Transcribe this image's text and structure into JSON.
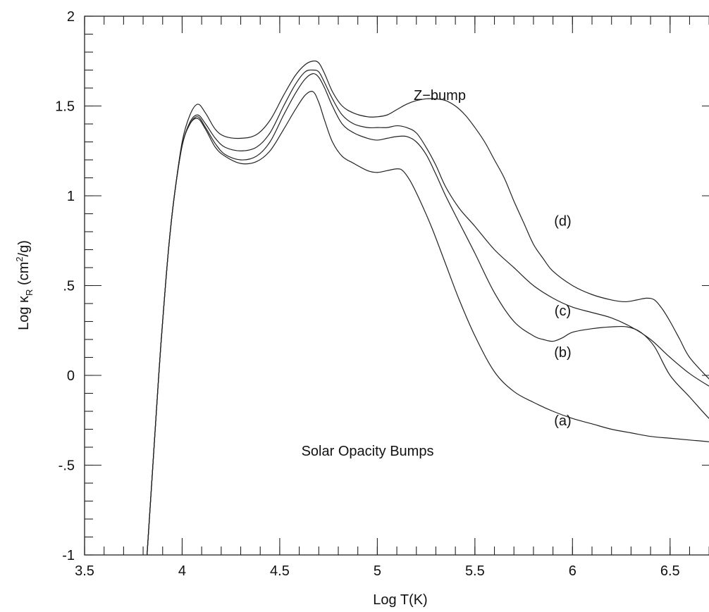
{
  "chart_data": {
    "type": "line",
    "xlabel": "Log T(K)",
    "ylabel_main": "Log κ",
    "ylabel_sub": "R",
    "ylabel_unit_pre": " (cm",
    "ylabel_unit_sup": "2",
    "ylabel_unit_post": "/g)",
    "xlim": [
      3.5,
      6.75
    ],
    "ylim": [
      -1,
      2
    ],
    "x_ticks": [
      {
        "value": 3.5,
        "label": "3.5"
      },
      {
        "value": 4,
        "label": "4"
      },
      {
        "value": 4.5,
        "label": "4.5"
      },
      {
        "value": 5,
        "label": "5"
      },
      {
        "value": 5.5,
        "label": "5.5"
      },
      {
        "value": 6,
        "label": "6"
      },
      {
        "value": 6.5,
        "label": "6.5"
      }
    ],
    "y_ticks": [
      {
        "value": 2,
        "label": "2"
      },
      {
        "value": 1.5,
        "label": "1.5"
      },
      {
        "value": 1,
        "label": "1"
      },
      {
        "value": 0.5,
        "label": ".5"
      },
      {
        "value": 0,
        "label": "0"
      },
      {
        "value": -0.5,
        "label": "-.5"
      },
      {
        "value": -1,
        "label": "-1"
      }
    ],
    "x_minor_step": 0.1,
    "y_minor_step": 0.1,
    "grid": false,
    "annotations": [
      {
        "text": "Z−bump",
        "x": 5.32,
        "y": 1.56
      },
      {
        "text": "Solar Opacity Bumps",
        "x": 4.95,
        "y": -0.42
      },
      {
        "text": "(d)",
        "x": 5.95,
        "y": 0.86
      },
      {
        "text": "(c)",
        "x": 5.95,
        "y": 0.36
      },
      {
        "text": "(b)",
        "x": 5.95,
        "y": 0.13
      },
      {
        "text": "(a)",
        "x": 5.95,
        "y": -0.25
      }
    ],
    "series": [
      {
        "name": "(a)",
        "x": [
          3.82,
          3.85,
          3.88,
          3.9,
          3.93,
          3.96,
          4.0,
          4.04,
          4.08,
          4.12,
          4.17,
          4.22,
          4.3,
          4.38,
          4.45,
          4.52,
          4.58,
          4.63,
          4.67,
          4.7,
          4.73,
          4.77,
          4.82,
          4.88,
          4.95,
          5.0,
          5.05,
          5.1,
          5.13,
          5.17,
          5.22,
          5.28,
          5.35,
          5.42,
          5.5,
          5.6,
          5.7,
          5.8,
          5.9,
          6.0,
          6.1,
          6.2,
          6.3,
          6.4,
          6.5,
          6.6,
          6.7,
          6.75
        ],
        "y": [
          -1.0,
          -0.5,
          0.0,
          0.3,
          0.7,
          1.0,
          1.28,
          1.4,
          1.43,
          1.37,
          1.27,
          1.22,
          1.18,
          1.19,
          1.25,
          1.37,
          1.48,
          1.56,
          1.58,
          1.52,
          1.42,
          1.3,
          1.22,
          1.18,
          1.14,
          1.13,
          1.14,
          1.15,
          1.14,
          1.08,
          0.97,
          0.82,
          0.62,
          0.42,
          0.22,
          0.02,
          -0.09,
          -0.15,
          -0.2,
          -0.24,
          -0.27,
          -0.3,
          -0.32,
          -0.34,
          -0.35,
          -0.36,
          -0.37,
          -0.38
        ]
      },
      {
        "name": "(b)",
        "x": [
          3.82,
          3.85,
          3.88,
          3.9,
          3.93,
          3.96,
          4.0,
          4.04,
          4.08,
          4.12,
          4.17,
          4.22,
          4.3,
          4.38,
          4.45,
          4.52,
          4.58,
          4.63,
          4.67,
          4.7,
          4.73,
          4.77,
          4.82,
          4.88,
          4.95,
          5.0,
          5.05,
          5.1,
          5.15,
          5.2,
          5.25,
          5.3,
          5.35,
          5.42,
          5.5,
          5.6,
          5.7,
          5.8,
          5.85,
          5.9,
          5.95,
          6.0,
          6.1,
          6.2,
          6.28,
          6.35,
          6.42,
          6.5,
          6.6,
          6.7,
          6.75
        ],
        "y": [
          -1.0,
          -0.5,
          0.0,
          0.3,
          0.7,
          1.0,
          1.28,
          1.4,
          1.44,
          1.38,
          1.29,
          1.23,
          1.2,
          1.22,
          1.3,
          1.45,
          1.57,
          1.65,
          1.68,
          1.66,
          1.6,
          1.5,
          1.4,
          1.35,
          1.32,
          1.31,
          1.32,
          1.33,
          1.33,
          1.3,
          1.23,
          1.12,
          1.0,
          0.85,
          0.68,
          0.46,
          0.3,
          0.22,
          0.2,
          0.19,
          0.21,
          0.24,
          0.26,
          0.27,
          0.27,
          0.24,
          0.16,
          0.0,
          -0.12,
          -0.24,
          -0.28
        ]
      },
      {
        "name": "(c)",
        "x": [
          3.82,
          3.85,
          3.88,
          3.9,
          3.93,
          3.96,
          4.0,
          4.04,
          4.08,
          4.12,
          4.17,
          4.22,
          4.3,
          4.38,
          4.45,
          4.52,
          4.58,
          4.63,
          4.67,
          4.7,
          4.73,
          4.77,
          4.82,
          4.88,
          4.95,
          5.0,
          5.05,
          5.1,
          5.15,
          5.2,
          5.25,
          5.3,
          5.35,
          5.42,
          5.5,
          5.6,
          5.7,
          5.8,
          5.9,
          6.0,
          6.1,
          6.2,
          6.3,
          6.4,
          6.5,
          6.6,
          6.7,
          6.75
        ],
        "y": [
          -1.0,
          -0.5,
          0.0,
          0.3,
          0.7,
          1.0,
          1.28,
          1.41,
          1.45,
          1.4,
          1.32,
          1.27,
          1.25,
          1.27,
          1.35,
          1.5,
          1.62,
          1.69,
          1.7,
          1.69,
          1.63,
          1.54,
          1.45,
          1.4,
          1.38,
          1.38,
          1.38,
          1.39,
          1.38,
          1.35,
          1.27,
          1.17,
          1.05,
          0.93,
          0.83,
          0.7,
          0.6,
          0.5,
          0.43,
          0.38,
          0.35,
          0.32,
          0.27,
          0.2,
          0.1,
          0.01,
          -0.06,
          -0.09
        ]
      },
      {
        "name": "(d)",
        "x": [
          3.82,
          3.85,
          3.88,
          3.9,
          3.93,
          3.96,
          4.0,
          4.04,
          4.08,
          4.12,
          4.17,
          4.22,
          4.3,
          4.38,
          4.45,
          4.52,
          4.58,
          4.63,
          4.67,
          4.7,
          4.73,
          4.77,
          4.82,
          4.88,
          4.95,
          5.0,
          5.05,
          5.1,
          5.15,
          5.2,
          5.25,
          5.3,
          5.35,
          5.4,
          5.45,
          5.5,
          5.55,
          5.6,
          5.65,
          5.7,
          5.75,
          5.8,
          5.85,
          5.9,
          6.0,
          6.1,
          6.2,
          6.27,
          6.33,
          6.38,
          6.42,
          6.46,
          6.5,
          6.55,
          6.6,
          6.7,
          6.75
        ],
        "y": [
          -1.0,
          -0.5,
          0.0,
          0.3,
          0.7,
          1.0,
          1.3,
          1.45,
          1.51,
          1.46,
          1.37,
          1.33,
          1.32,
          1.34,
          1.42,
          1.56,
          1.67,
          1.73,
          1.75,
          1.74,
          1.68,
          1.58,
          1.5,
          1.46,
          1.44,
          1.44,
          1.45,
          1.48,
          1.51,
          1.53,
          1.54,
          1.54,
          1.53,
          1.5,
          1.45,
          1.38,
          1.3,
          1.2,
          1.1,
          0.97,
          0.85,
          0.73,
          0.65,
          0.58,
          0.5,
          0.45,
          0.42,
          0.41,
          0.42,
          0.43,
          0.42,
          0.37,
          0.3,
          0.2,
          0.1,
          -0.02,
          -0.07
        ]
      }
    ]
  }
}
